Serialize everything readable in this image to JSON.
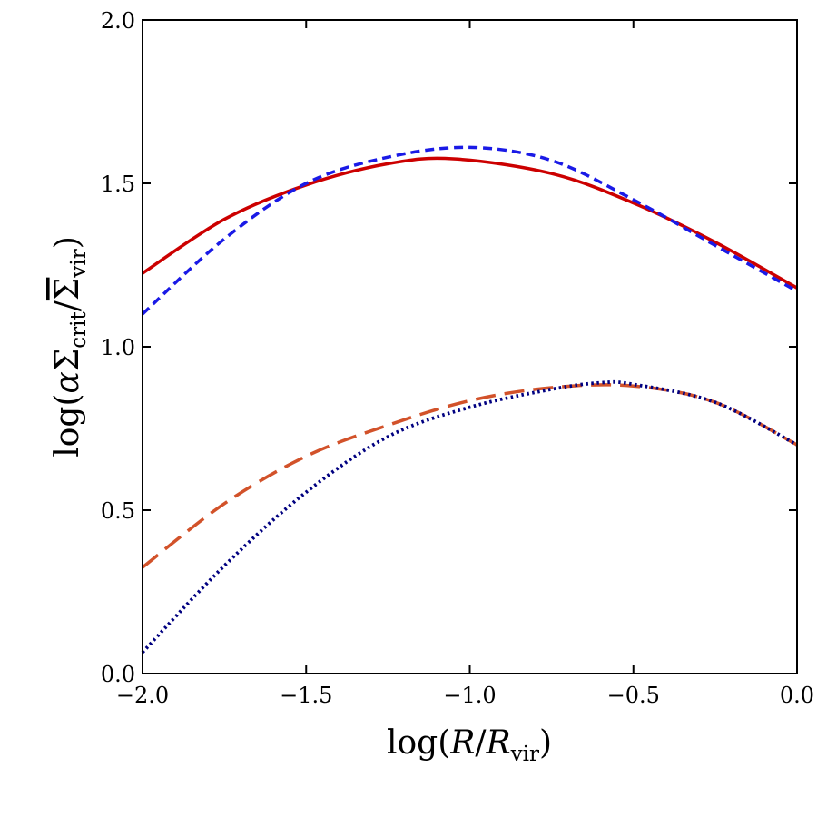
{
  "chart_data": {
    "type": "line",
    "xlabel": {
      "prefix": "log(",
      "main1": "R",
      "slash": "/",
      "main2": "R",
      "sub": "vir",
      "suffix": ")"
    },
    "ylabel": {
      "prefix": "log(",
      "alpha": "α",
      "sigma1": "Σ",
      "sub1": "crit",
      "slash": "/",
      "sigma2": "Σ",
      "sub2": "vir",
      "suffix": ")"
    },
    "xlim": [
      -2.0,
      0.0
    ],
    "ylim": [
      0.0,
      2.0
    ],
    "xticks": [
      -2.0,
      -1.5,
      -1.0,
      -0.5,
      0.0
    ],
    "xtick_labels": [
      "−2.0",
      "−1.5",
      "−1.0",
      "−0.5",
      "0.0"
    ],
    "yticks": [
      0.0,
      0.5,
      1.0,
      1.5,
      2.0
    ],
    "ytick_labels": [
      "0.0",
      "0.5",
      "1.0",
      "1.5",
      "2.0"
    ],
    "grid": false,
    "series": [
      {
        "style": "solid",
        "color": "#cc0000",
        "x": [
          -2.0,
          -1.75,
          -1.5,
          -1.25,
          -1.05,
          -0.75,
          -0.5,
          -0.25,
          0.0
        ],
        "y": [
          1.225,
          1.39,
          1.495,
          1.56,
          1.575,
          1.53,
          1.44,
          1.32,
          1.18
        ]
      },
      {
        "style": "dashed-short",
        "color": "#1a1ae6",
        "x": [
          -2.0,
          -1.75,
          -1.5,
          -1.25,
          -1.0,
          -0.75,
          -0.5,
          -0.25,
          0.0
        ],
        "y": [
          1.1,
          1.33,
          1.5,
          1.58,
          1.61,
          1.57,
          1.45,
          1.31,
          1.17
        ]
      },
      {
        "style": "dashed-long",
        "color": "#d2522a",
        "x": [
          -2.0,
          -1.75,
          -1.5,
          -1.25,
          -1.0,
          -0.75,
          -0.5,
          -0.25,
          0.0
        ],
        "y": [
          0.325,
          0.52,
          0.665,
          0.76,
          0.835,
          0.875,
          0.88,
          0.83,
          0.7
        ]
      },
      {
        "style": "dotted",
        "color": "#000080",
        "x": [
          -2.0,
          -1.75,
          -1.5,
          -1.25,
          -1.0,
          -0.75,
          -0.6,
          -0.5,
          -0.25,
          0.0
        ],
        "y": [
          0.065,
          0.33,
          0.555,
          0.725,
          0.815,
          0.87,
          0.89,
          0.885,
          0.83,
          0.7
        ]
      }
    ]
  }
}
